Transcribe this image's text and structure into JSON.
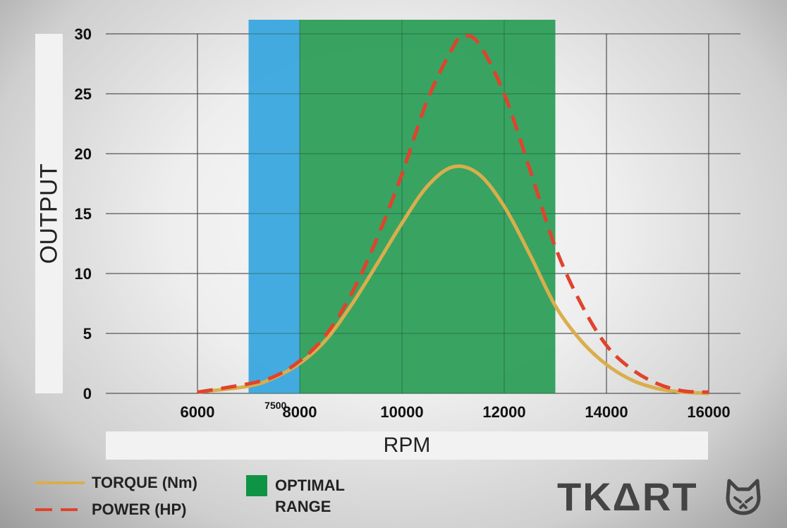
{
  "chart_data": {
    "type": "line",
    "xlabel": "RPM",
    "ylabel": "OUTPUT",
    "xlim": [
      6000,
      16000
    ],
    "ylim": [
      0,
      30
    ],
    "x_ticks": [
      6000,
      8000,
      10000,
      12000,
      14000,
      16000
    ],
    "x_ticks_minor_label": "7500",
    "y_ticks": [
      0,
      5,
      10,
      15,
      20,
      25,
      30
    ],
    "grid": true,
    "bands": [
      {
        "label": "",
        "x_range": [
          7000,
          8000
        ],
        "color": "#3aa6de"
      },
      {
        "label": "OPTIMAL RANGE",
        "x_range": [
          8000,
          13000
        ],
        "color": "#2e9e5a"
      }
    ],
    "series": [
      {
        "name": "TORQUE (Nm)",
        "style": "solid",
        "color": "#d9ae4c",
        "x": [
          6000,
          7000,
          7500,
          8000,
          8500,
          9000,
          9500,
          10000,
          10500,
          11000,
          11500,
          12000,
          12500,
          13000,
          13500,
          14000,
          14500,
          15000,
          15500,
          16000
        ],
        "y": [
          0.1,
          0.6,
          1.3,
          2.5,
          4.4,
          7.3,
          10.7,
          14.2,
          17.3,
          18.9,
          18.3,
          15.6,
          11.6,
          7.3,
          4.4,
          2.4,
          1.1,
          0.4,
          0.1,
          0.0
        ]
      },
      {
        "name": "POWER (HP)",
        "style": "dashed",
        "color": "#e0432d",
        "x": [
          6000,
          7000,
          7500,
          8000,
          8500,
          9000,
          9500,
          10000,
          10500,
          11000,
          11200,
          11500,
          12000,
          12500,
          13000,
          13500,
          14000,
          14500,
          15000,
          15500,
          16000
        ],
        "y": [
          0.1,
          0.8,
          1.4,
          2.7,
          4.8,
          8.2,
          12.8,
          18.3,
          24.5,
          28.9,
          29.8,
          29.2,
          25.0,
          18.7,
          12.2,
          7.5,
          4.0,
          2.0,
          0.8,
          0.2,
          0.1
        ]
      }
    ]
  },
  "legend": {
    "torque": "TORQUE (Nm)",
    "power": "POWER (HP)",
    "optimal_line1": "OPTIMAL",
    "optimal_line2": "RANGE"
  },
  "brand": {
    "logo_text": "TKΔRT",
    "logo_icon": "cat-head-icon"
  }
}
